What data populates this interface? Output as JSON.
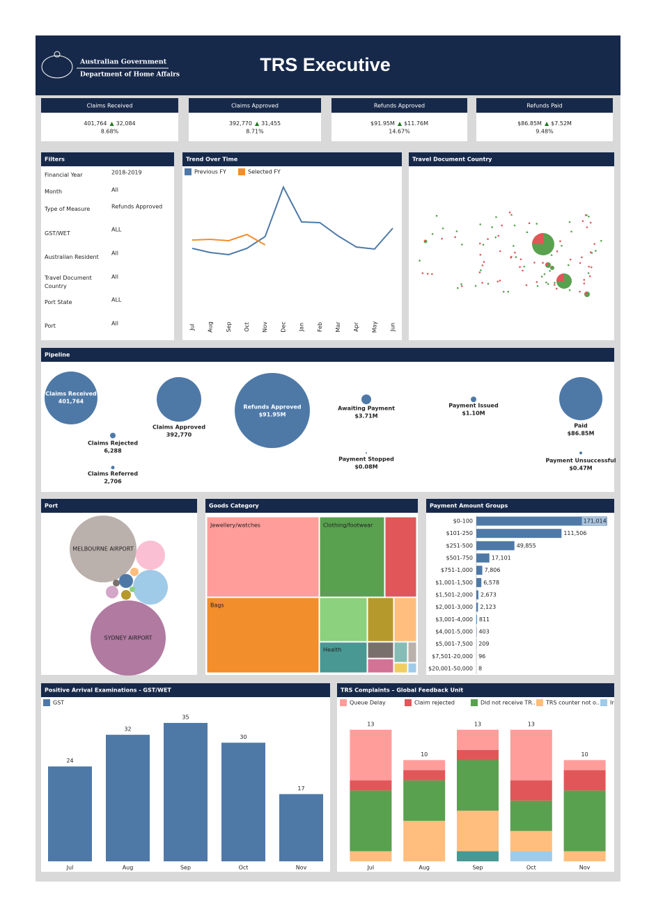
{
  "header": {
    "org": "Australian Government",
    "dept": "Department of Home Affairs",
    "title": "TRS Executive"
  },
  "kpis": [
    {
      "title": "Claims Received",
      "value": "401,764",
      "change": "32,084",
      "pct": "8.68%"
    },
    {
      "title": "Claims Approved",
      "value": "392,770",
      "change": "31,455",
      "pct": "8.71%"
    },
    {
      "title": "Refunds Approved",
      "value": "$91.95M",
      "change": "$11.76M",
      "pct": "14.67%"
    },
    {
      "title": "Refunds Paid",
      "value": "$86.85M",
      "change": "$7.52M",
      "pct": "9.48%"
    }
  ],
  "filters": {
    "title": "Filters",
    "items": [
      {
        "label": "Financial Year",
        "value": "2018-2019"
      },
      {
        "label": "Month",
        "value": "All"
      },
      {
        "label": "Type of Measure",
        "value": "Refunds Approved"
      },
      {
        "label": "GST/WET",
        "value": "ALL"
      },
      {
        "label": "Australian Resident",
        "value": "All"
      },
      {
        "label": "Travel Document Country",
        "value": "All"
      },
      {
        "label": "Port State",
        "value": "ALL"
      },
      {
        "label": "Port",
        "value": "All"
      }
    ]
  },
  "travel": {
    "title": "Travel Document Country"
  },
  "pipeline": {
    "title": "Pipeline",
    "nodes": [
      {
        "label": "Claims Received",
        "value": "401,764"
      },
      {
        "label": "Claims Approved",
        "value": "392,770"
      },
      {
        "label": "Refunds Approved",
        "value": "$91.95M"
      },
      {
        "label": "Awaiting Payment",
        "value": "$3.71M"
      },
      {
        "label": "Payment Issued",
        "value": "$1.10M"
      },
      {
        "label": "Paid",
        "value": "$86.85M"
      },
      {
        "label": "Claims Rejected",
        "value": "6,288"
      },
      {
        "label": "Claims Referred",
        "value": "2,706"
      },
      {
        "label": "Payment Stopped",
        "value": "$0.08M"
      },
      {
        "label": "Payment Unsuccessful",
        "value": "$0.47M"
      }
    ]
  },
  "port": {
    "title": "Port",
    "labels": [
      "MELBOURNE AIRPORT",
      "SYDNEY AIRPORT"
    ]
  },
  "goods": {
    "title": "Goods Category",
    "labels": [
      "Jewellery/watches",
      "Clothing/footwear",
      "Bags",
      "Health"
    ]
  },
  "chart_data": [
    {
      "type": "line",
      "title": "Trend Over Time",
      "categories": [
        "Jul",
        "Aug",
        "Sep",
        "Oct",
        "Nov",
        "Dec",
        "Jan",
        "Feb",
        "Mar",
        "Apr",
        "May",
        "Jun"
      ],
      "series": [
        {
          "name": "Previous FY",
          "color": "#4e79a7",
          "values": [
            49,
            46,
            44.5,
            49,
            57.5,
            93,
            68,
            67.5,
            58,
            50,
            48.5,
            63.5
          ]
        },
        {
          "name": "Selected FY",
          "color": "#f28e2b",
          "values": [
            55,
            55.5,
            54.5,
            59,
            51.5,
            null,
            null,
            null,
            null,
            null,
            null,
            null
          ]
        }
      ],
      "ylim": [
        0,
        100
      ]
    },
    {
      "type": "hbar",
      "title": "Payment Amount Groups",
      "categories": [
        "$0-100",
        "$101-250",
        "$251-500",
        "$501-750",
        "$751-1,000",
        "$1,001-1,500",
        "$1,501-2,000",
        "$2,001-3,000",
        "$3,001-4,000",
        "$4,001-5,000",
        "$5,001-7,500",
        "$7,501-20,000",
        "$20,001-50,000"
      ],
      "values": [
        171014,
        111506,
        49855,
        17101,
        7806,
        6578,
        2673,
        2123,
        811,
        403,
        209,
        96,
        8
      ],
      "value_labels": [
        "171,014",
        "111,506",
        "49,855",
        "17,101",
        "7,806",
        "6,578",
        "2,673",
        "2,123",
        "811",
        "403",
        "209",
        "96",
        "8"
      ],
      "color": "#4e79a7",
      "xlim": [
        0,
        175000
      ]
    },
    {
      "type": "bar",
      "title": "Positive Arrival Examinations - GST/WET",
      "categories": [
        "Jul",
        "Aug",
        "Sep",
        "Oct",
        "Nov"
      ],
      "series": [
        {
          "name": "GST",
          "color": "#4e79a7",
          "values": [
            24,
            32,
            35,
            30,
            17
          ]
        }
      ],
      "ylim": [
        0,
        38
      ]
    },
    {
      "type": "stacked_bar",
      "title": "TRS Complaints – Global Feedback Unit",
      "categories": [
        "Jul",
        "Aug",
        "Sep",
        "Oct",
        "Nov"
      ],
      "series": [
        {
          "name": "Queue Delay",
          "color": "#ff9d9a",
          "values": [
            5,
            1,
            2,
            5,
            1
          ]
        },
        {
          "name": "Claim rejected",
          "color": "#e15759",
          "values": [
            1,
            1,
            1,
            2,
            2
          ]
        },
        {
          "name": "Did not receive TR..",
          "color": "#59a14f",
          "values": [
            6,
            4,
            5,
            3,
            6
          ]
        },
        {
          "name": "TRS counter not o..",
          "color": "#ffbe7d",
          "values": [
            1,
            4,
            4,
            2,
            1
          ]
        },
        {
          "name": "Ir",
          "color": "#a0cbe8",
          "values": [
            0,
            0,
            0,
            1,
            0
          ]
        },
        {
          "name": null,
          "color": "#499894",
          "values": [
            0,
            0,
            1,
            0,
            0
          ]
        }
      ],
      "totals": [
        13,
        10,
        13,
        13,
        10
      ],
      "ylim": [
        0,
        14.5
      ]
    }
  ]
}
